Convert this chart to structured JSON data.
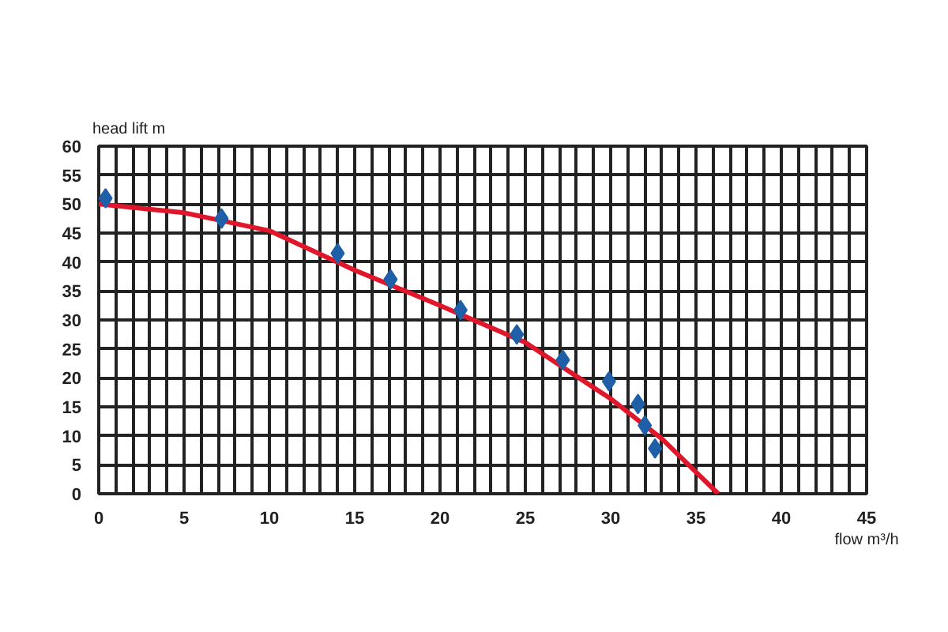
{
  "chart_data": {
    "type": "scatter",
    "xlabel": "flow m³/h",
    "ylabel": "head lift m",
    "xlim": [
      0,
      45
    ],
    "ylim": [
      0,
      60
    ],
    "xticks": [
      0,
      {
        "value": 1,
        "label": null
      },
      {
        "value": 2,
        "label": null
      },
      {
        "value": 3,
        "label": null
      },
      {
        "value": 4,
        "label": null
      },
      5,
      {
        "value": 6,
        "label": null
      },
      {
        "value": 7,
        "label": null
      },
      {
        "value": 8,
        "label": null
      },
      {
        "value": 9,
        "label": null
      },
      10,
      {
        "value": 11,
        "label": null
      },
      {
        "value": 12,
        "label": null
      },
      {
        "value": 13,
        "label": null
      },
      {
        "value": 14,
        "label": null
      },
      15,
      {
        "value": 16,
        "label": null
      },
      {
        "value": 17,
        "label": null
      },
      {
        "value": 18,
        "label": null
      },
      {
        "value": 19,
        "label": null
      },
      20,
      {
        "value": 21,
        "label": null
      },
      {
        "value": 22,
        "label": null
      },
      {
        "value": 23,
        "label": null
      },
      {
        "value": 24,
        "label": null
      },
      25,
      {
        "value": 26,
        "label": null
      },
      {
        "value": 27,
        "label": null
      },
      {
        "value": 28,
        "label": null
      },
      {
        "value": 29,
        "label": null
      },
      30,
      {
        "value": 31,
        "label": null
      },
      {
        "value": 32,
        "label": null
      },
      {
        "value": 33,
        "label": null
      },
      {
        "value": 34,
        "label": null
      },
      35,
      {
        "value": 36,
        "label": null
      },
      {
        "value": 37,
        "label": null
      },
      {
        "value": 38,
        "label": null
      },
      {
        "value": 39,
        "label": null
      },
      40,
      {
        "value": 41,
        "label": null
      },
      {
        "value": 42,
        "label": null
      },
      {
        "value": 43,
        "label": null
      },
      {
        "value": 44,
        "label": null
      },
      45
    ],
    "yticks": [
      0,
      5,
      10,
      15,
      20,
      25,
      30,
      35,
      40,
      45,
      50,
      55,
      60
    ],
    "grid": true,
    "series": [
      {
        "type": "line",
        "color": "#e0162b",
        "line_style": "solid",
        "marker": "none",
        "x": [
          0,
          5,
          10,
          15,
          20,
          25,
          30,
          33,
          36.3
        ],
        "values": [
          50,
          48.5,
          45.4,
          38.6,
          32.5,
          26.1,
          16.4,
          9.5,
          0
        ]
      },
      {
        "color": "#1f5fa8",
        "marker": "diamond",
        "x": [
          0.4,
          7.2,
          14.0,
          17.1,
          21.2,
          24.5,
          27.2,
          29.9,
          31.6,
          32.0,
          32.6
        ],
        "values": [
          51,
          47.5,
          41.5,
          37,
          31.7,
          27.5,
          23.1,
          19.4,
          15.5,
          11.8,
          7.8
        ]
      }
    ]
  }
}
